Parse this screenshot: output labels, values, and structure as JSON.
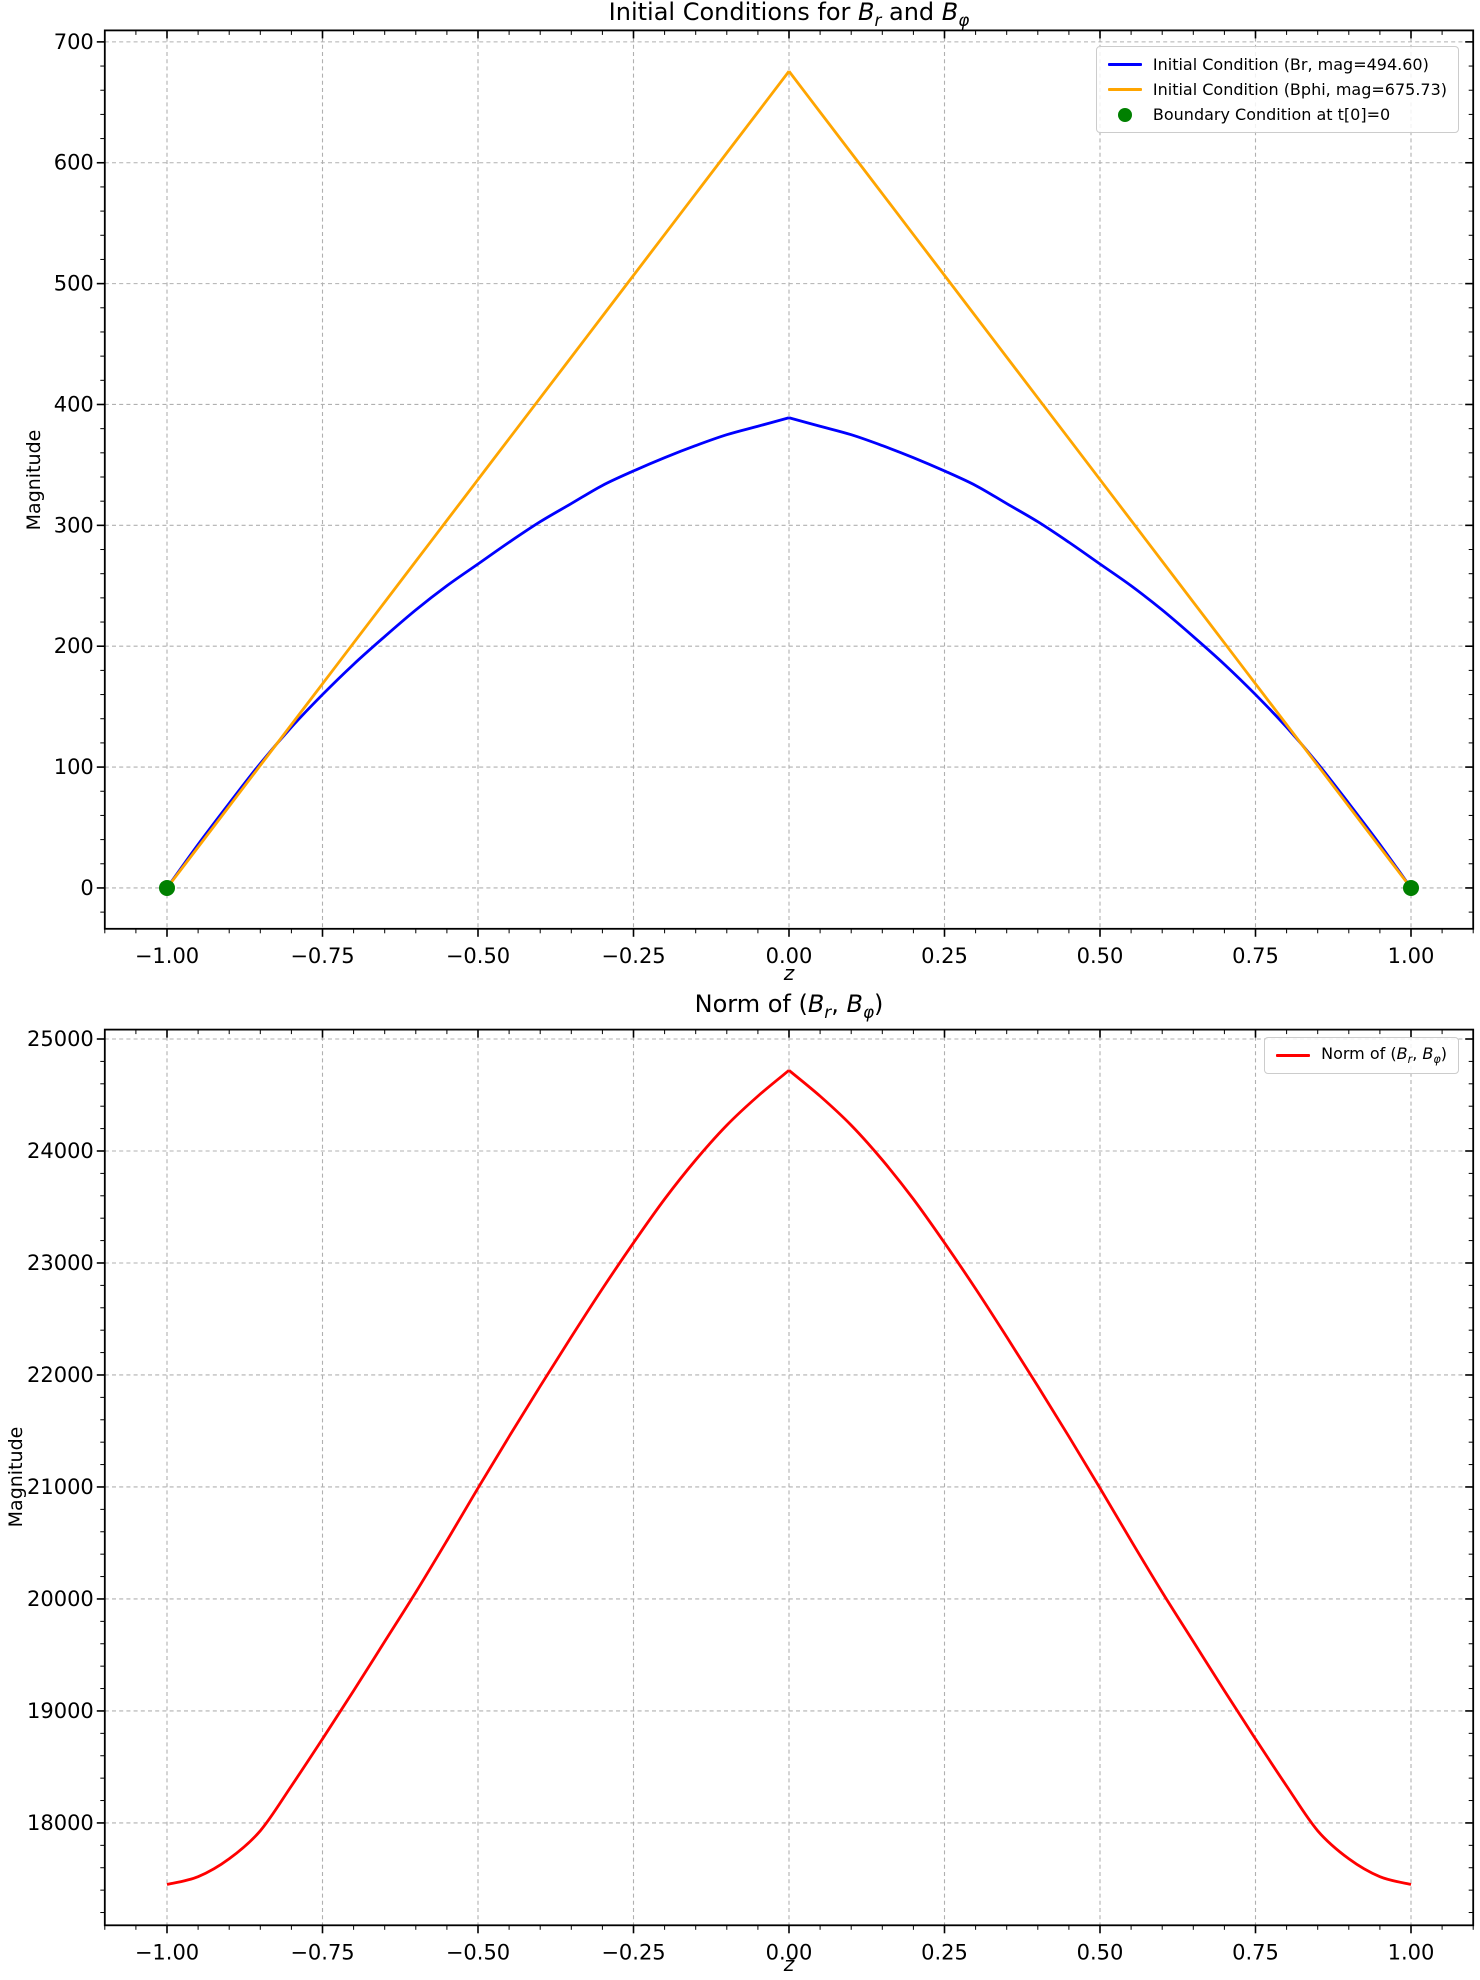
{
  "figure": {
    "background": "#ffffff"
  },
  "chart_data": [
    {
      "type": "line",
      "key": "initial-conditions",
      "title_parts": [
        {
          "t": "Initial Conditions for "
        },
        {
          "bi": "B"
        },
        {
          "sub": "r"
        },
        {
          "t": " and "
        },
        {
          "bi": "B"
        },
        {
          "sub": "φ"
        }
      ],
      "xlabel": "z",
      "ylabel": "Magnitude",
      "xlim": [
        -1.1,
        1.1
      ],
      "ylim": [
        -33.8,
        709.5
      ],
      "grid": true,
      "legend_position": "upper right",
      "xticks": {
        "values": [
          -1,
          -0.75,
          -0.5,
          -0.25,
          0,
          0.25,
          0.5,
          0.75,
          1
        ],
        "labels": [
          "−1.00",
          "−0.75",
          "−0.50",
          "−0.25",
          "0.00",
          "0.25",
          "0.50",
          "0.75",
          "1.00"
        ]
      },
      "yticks": {
        "values": [
          0,
          100,
          200,
          300,
          400,
          500,
          600,
          700
        ],
        "labels": [
          "0",
          "100",
          "200",
          "300",
          "400",
          "500",
          "600",
          "700"
        ]
      },
      "minor_x_step": 0.05,
      "minor_y_step": 20,
      "x": [
        -1,
        -0.95,
        -0.9,
        -0.85,
        -0.8,
        -0.75,
        -0.7,
        -0.65,
        -0.6,
        -0.55,
        -0.5,
        -0.45,
        -0.4,
        -0.35,
        -0.3,
        -0.25,
        -0.2,
        -0.15,
        -0.1,
        -0.05,
        0,
        0.05,
        0.1,
        0.15,
        0.2,
        0.25,
        0.3,
        0.35,
        0.4,
        0.45,
        0.5,
        0.55,
        0.6,
        0.65,
        0.7,
        0.75,
        0.8,
        0.85,
        0.9,
        0.95,
        1
      ],
      "series": [
        {
          "key": "br",
          "name": "Initial Condition (Br, mag=494.60)",
          "color": "#0000ff",
          "peak_value": 389,
          "values": [
            0,
            36,
            70,
            103,
            133,
            160,
            185,
            208,
            230,
            250,
            268,
            286,
            303,
            318,
            333,
            345,
            356,
            366,
            375,
            382,
            389,
            382,
            375,
            366,
            356,
            345,
            333,
            318,
            303,
            286,
            268,
            250,
            230,
            208,
            185,
            160,
            133,
            103,
            70,
            36,
            0
          ]
        },
        {
          "key": "bphi",
          "name": "Initial Condition (Bphi, mag=675.73)",
          "color": "#ffa500",
          "peak_value": 675.73,
          "values": [
            0,
            33.8,
            67.6,
            101.4,
            135.1,
            168.9,
            202.7,
            236.5,
            270.3,
            304.1,
            337.9,
            371.7,
            405.4,
            439.2,
            473,
            506.8,
            540.6,
            574.4,
            608.2,
            641.9,
            675.7,
            641.9,
            608.2,
            574.4,
            540.6,
            506.8,
            473,
            439.2,
            405.4,
            371.7,
            337.9,
            304.1,
            270.3,
            236.5,
            202.7,
            168.9,
            135.1,
            101.4,
            67.6,
            33.8,
            0
          ]
        }
      ],
      "scatter": [
        {
          "key": "boundary",
          "name": "Boundary Condition at t[0]=0",
          "color": "#008000",
          "points": [
            [
              -1,
              0
            ],
            [
              1,
              0
            ]
          ]
        }
      ],
      "legend_items": [
        {
          "swatch": "line",
          "color": "#0000ff",
          "label_parts": [
            {
              "t": "Initial Condition (Br, mag=494.60)"
            }
          ]
        },
        {
          "swatch": "line",
          "color": "#ffa500",
          "label_parts": [
            {
              "t": "Initial Condition (Bphi, mag=675.73)"
            }
          ]
        },
        {
          "swatch": "dot",
          "color": "#008000",
          "label_parts": [
            {
              "t": "Boundary Condition at t[0]=0"
            }
          ]
        }
      ]
    },
    {
      "type": "line",
      "key": "norm",
      "title_parts": [
        {
          "t": "Norm of ("
        },
        {
          "bi": "B"
        },
        {
          "sub": "r"
        },
        {
          "t": ", "
        },
        {
          "bi": "B"
        },
        {
          "sub": "φ"
        },
        {
          "t": ")"
        }
      ],
      "xlabel": "z",
      "ylabel": "Magnitude",
      "xlim": [
        -1.1,
        1.1
      ],
      "ylim": [
        17086,
        25084
      ],
      "grid": true,
      "legend_position": "upper right",
      "xticks": {
        "values": [
          -1,
          -0.75,
          -0.5,
          -0.25,
          0,
          0.25,
          0.5,
          0.75,
          1
        ],
        "labels": [
          "−1.00",
          "−0.75",
          "−0.50",
          "−0.25",
          "0.00",
          "0.25",
          "0.50",
          "0.75",
          "1.00"
        ]
      },
      "yticks": {
        "values": [
          18000,
          19000,
          20000,
          21000,
          22000,
          23000,
          24000,
          25000
        ],
        "labels": [
          "18000",
          "19000",
          "20000",
          "21000",
          "22000",
          "23000",
          "24000",
          "25000"
        ]
      },
      "minor_x_step": 0.05,
      "minor_y_step": 200,
      "x": [
        -1,
        -0.95,
        -0.9,
        -0.85,
        -0.8,
        -0.75,
        -0.7,
        -0.65,
        -0.6,
        -0.55,
        -0.5,
        -0.45,
        -0.4,
        -0.35,
        -0.3,
        -0.25,
        -0.2,
        -0.15,
        -0.1,
        -0.05,
        0,
        0.05,
        0.1,
        0.15,
        0.2,
        0.25,
        0.3,
        0.35,
        0.4,
        0.45,
        0.5,
        0.55,
        0.6,
        0.65,
        0.7,
        0.75,
        0.8,
        0.85,
        0.9,
        0.95,
        1
      ],
      "series": [
        {
          "key": "norm",
          "name": "Norm of (Br, Bφ)",
          "color": "#ff0000",
          "peak_value": 24720,
          "values": [
            17450,
            17520,
            17680,
            17930,
            18330,
            18750,
            19180,
            19620,
            20060,
            20520,
            20990,
            21450,
            21900,
            22340,
            22770,
            23180,
            23570,
            23920,
            24230,
            24490,
            24720,
            24490,
            24230,
            23920,
            23570,
            23180,
            22770,
            22340,
            21900,
            21450,
            20990,
            20520,
            20060,
            19620,
            19180,
            18750,
            18330,
            17930,
            17680,
            17520,
            17450
          ]
        }
      ],
      "scatter": [],
      "legend_items": [
        {
          "swatch": "line",
          "color": "#ff0000",
          "label_parts": [
            {
              "t": "Norm of ("
            },
            {
              "bi": "B"
            },
            {
              "sub": "r"
            },
            {
              "t": ", "
            },
            {
              "bi": "B"
            },
            {
              "sub": "φ"
            },
            {
              "t": ")"
            }
          ]
        }
      ]
    }
  ],
  "style": {
    "grid_color": "#b0b0b0",
    "spine_color": "#000000",
    "tick_color": "#000000"
  }
}
